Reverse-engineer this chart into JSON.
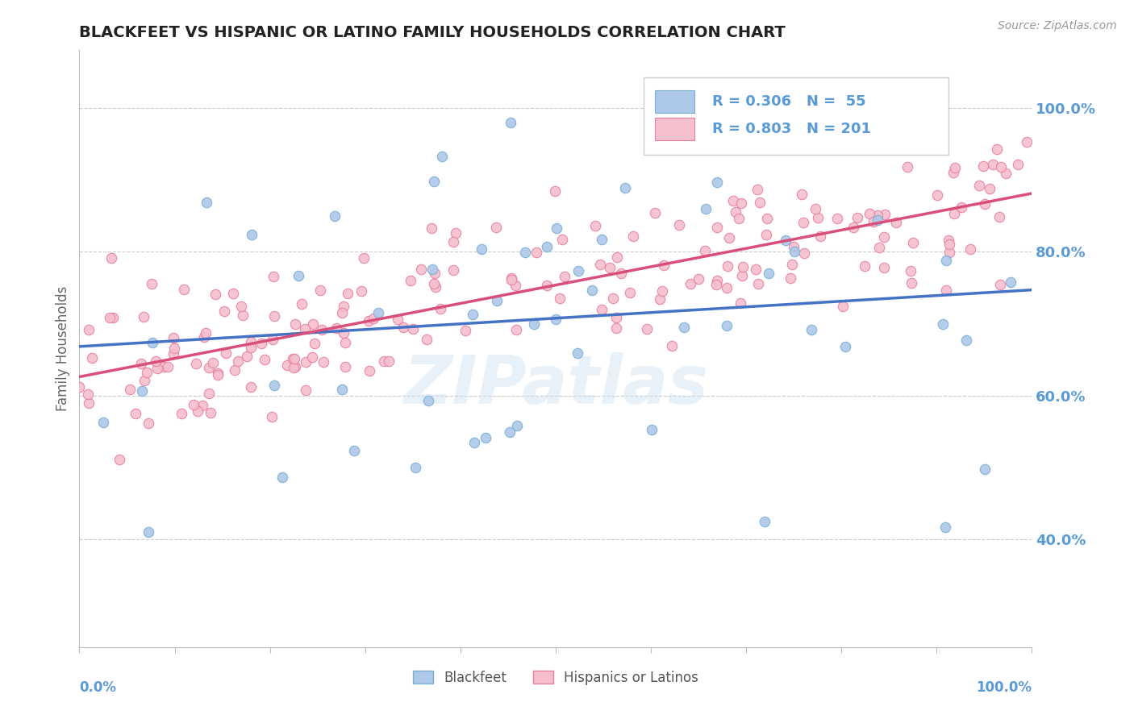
{
  "title": "BLACKFEET VS HISPANIC OR LATINO FAMILY HOUSEHOLDS CORRELATION CHART",
  "source": "Source: ZipAtlas.com",
  "ylabel": "Family Households",
  "y_ticks": [
    40.0,
    60.0,
    80.0,
    100.0
  ],
  "xlim": [
    0.0,
    100.0
  ],
  "ylim": [
    25.0,
    108.0
  ],
  "blue_color": "#adc8e8",
  "blue_edge": "#7aafd4",
  "pink_color": "#f5bfce",
  "pink_edge": "#e87fa0",
  "blue_line_color": "#4472c4",
  "pink_line_color": "#d94f7a",
  "watermark": "ZIPatlas",
  "blue_R": 0.306,
  "blue_N": 55,
  "pink_R": 0.803,
  "pink_N": 201,
  "background_color": "#ffffff",
  "grid_color": "#cccccc",
  "title_color": "#222222",
  "axis_label_color": "#5b9bd5",
  "legend_text_color": "#5b9bd5"
}
